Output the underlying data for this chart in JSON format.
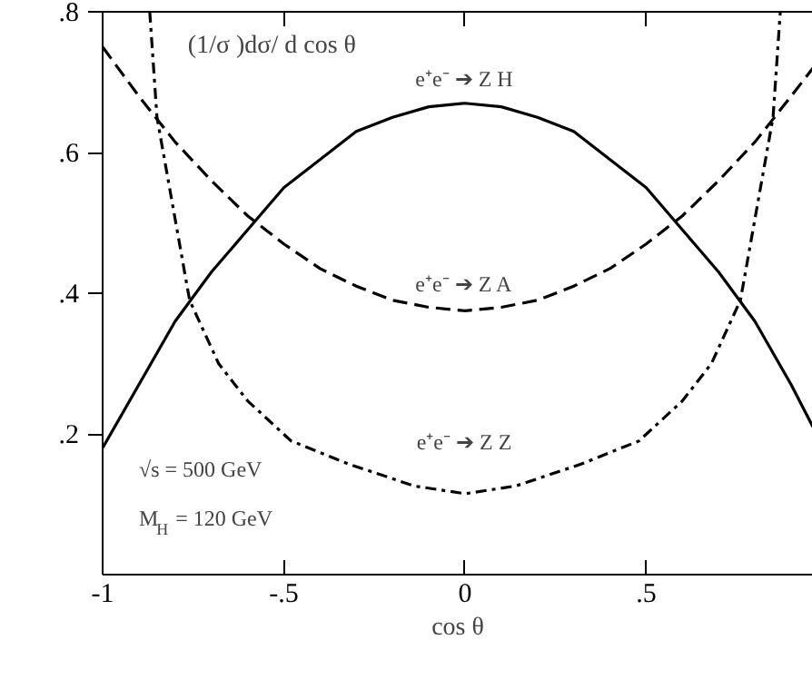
{
  "chart_data": {
    "type": "line",
    "xlabel": "cos θ",
    "ylabel": "(1/σ )dσ/ d cos θ",
    "xlim": [
      -1,
      0.96
    ],
    "ylim": [
      0,
      0.8
    ],
    "xticks": [
      -1,
      {
        "value": -0.5,
        "label": "-.5"
      },
      0,
      {
        "value": 0.5,
        "label": ".5"
      }
    ],
    "yticks": [
      {
        "value": 0.2,
        "label": ".2"
      },
      {
        "value": 0.4,
        "label": ".4"
      },
      {
        "value": 0.6,
        "label": ".6"
      },
      {
        "value": 0.8,
        "label": ".8"
      }
    ],
    "grid": false,
    "marker": "none",
    "series": [
      {
        "color": "#000000",
        "line_style": "solid",
        "x": [
          -1,
          -0.9,
          -0.8,
          -0.7,
          -0.6,
          -0.5,
          -0.4,
          -0.3,
          -0.2,
          -0.1,
          0,
          0.1,
          0.2,
          0.3,
          0.4,
          0.5,
          0.6,
          0.7,
          0.8,
          0.9,
          0.96
        ],
        "values": [
          0.18,
          0.27,
          0.36,
          0.43,
          0.49,
          0.55,
          0.59,
          0.63,
          0.65,
          0.665,
          0.67,
          0.665,
          0.65,
          0.63,
          0.59,
          0.55,
          0.49,
          0.43,
          0.36,
          0.27,
          0.21
        ]
      },
      {
        "color": "#000000",
        "line_style": "dashed",
        "x": [
          -1,
          -0.9,
          -0.8,
          -0.7,
          -0.6,
          -0.5,
          -0.4,
          -0.3,
          -0.2,
          -0.1,
          0,
          0.1,
          0.2,
          0.3,
          0.4,
          0.5,
          0.6,
          0.7,
          0.8,
          0.9,
          0.96
        ],
        "values": [
          0.75,
          0.68,
          0.615,
          0.56,
          0.51,
          0.47,
          0.435,
          0.41,
          0.39,
          0.38,
          0.375,
          0.38,
          0.39,
          0.41,
          0.435,
          0.47,
          0.51,
          0.56,
          0.615,
          0.68,
          0.72
        ]
      },
      {
        "color": "#000000",
        "line_style": "dashdot",
        "x": [
          -0.87,
          -0.85,
          -0.76,
          -0.68,
          -0.6,
          -0.48,
          -0.32,
          -0.14,
          0,
          0.14,
          0.32,
          0.48,
          0.6,
          0.68,
          0.76,
          0.85,
          0.87
        ],
        "values": [
          0.8,
          0.65,
          0.39,
          0.3,
          0.247,
          0.19,
          0.157,
          0.126,
          0.115,
          0.126,
          0.157,
          0.19,
          0.247,
          0.3,
          0.39,
          0.65,
          0.8
        ]
      }
    ],
    "annotations": [
      "e⁺e⁻ ➔ Z H",
      "e⁺e⁻ ➔ Z A",
      "e⁺e⁻ ➔ Z Z",
      "√s = 500 GeV",
      "M$_{H}$ = 120 GeV"
    ]
  }
}
